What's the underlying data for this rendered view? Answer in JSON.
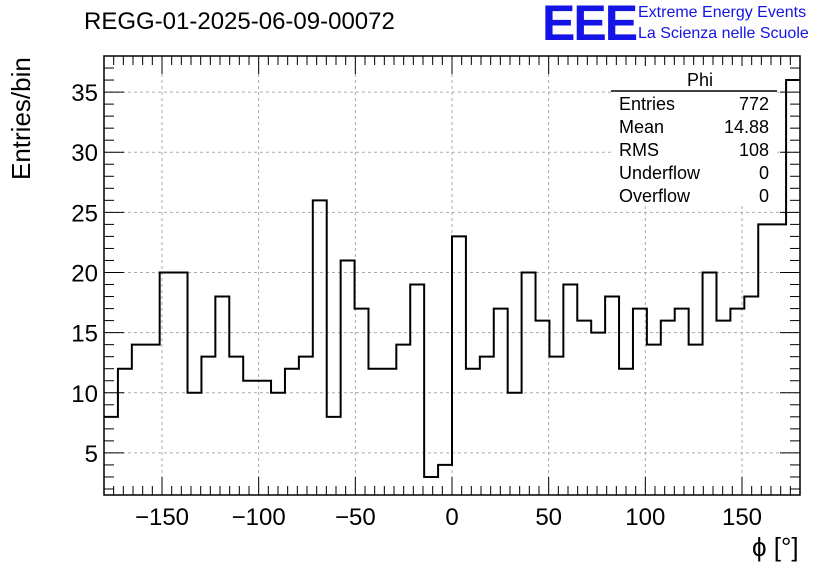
{
  "chart_data": {
    "type": "histogram",
    "title": "REGG-01-2025-06-09-00072",
    "xlabel": "ϕ [°]",
    "ylabel": "Entries/bin",
    "xlim": [
      -180,
      180
    ],
    "ylim": [
      1.5,
      38
    ],
    "grid": true,
    "bin_edges": [
      -180,
      -172.8,
      -165.6,
      -158.4,
      -151.2,
      -144,
      -136.8,
      -129.6,
      -122.4,
      -115.2,
      -108,
      -100.8,
      -93.6,
      -86.4,
      -79.2,
      -72,
      -64.8,
      -57.6,
      -50.4,
      -43.2,
      -36,
      -28.8,
      -21.6,
      -14.4,
      -7.2,
      0,
      7.2,
      14.4,
      21.6,
      28.8,
      36,
      43.2,
      50.4,
      57.6,
      64.8,
      72,
      79.2,
      86.4,
      93.6,
      100.8,
      108,
      115.2,
      122.4,
      129.6,
      136.8,
      144,
      151.2,
      158.4,
      165.6,
      172.8,
      180
    ],
    "values": [
      8,
      12,
      14,
      14,
      20,
      20,
      10,
      13,
      18,
      13,
      11,
      11,
      10,
      12,
      13,
      26,
      8,
      21,
      17,
      12,
      12,
      14,
      19,
      3,
      4,
      23,
      12,
      13,
      17,
      10,
      20,
      16,
      13,
      19,
      16,
      15,
      18,
      12,
      17,
      14,
      16,
      17,
      14,
      20,
      16,
      17,
      18,
      24,
      24,
      36
    ],
    "x_ticks": [
      -150,
      -100,
      -50,
      0,
      50,
      100,
      150
    ],
    "x_tick_labels": [
      "−150",
      "−100",
      "−50",
      "0",
      "50",
      "100",
      "150"
    ],
    "y_ticks": [
      5,
      10,
      15,
      20,
      25,
      30,
      35
    ],
    "y_tick_labels": [
      "5",
      "10",
      "15",
      "20",
      "25",
      "30",
      "35"
    ],
    "stats": {
      "name": "Phi",
      "rows": [
        {
          "label": "Entries",
          "value": "772"
        },
        {
          "label": "Mean",
          "value": "14.88"
        },
        {
          "label": "RMS",
          "value": "108"
        },
        {
          "label": "Underflow",
          "value": "0"
        },
        {
          "label": "Overflow",
          "value": "0"
        }
      ]
    }
  },
  "logo": {
    "mark": "EEE",
    "line1": "Extreme Energy Events",
    "line2": "La Scienza nelle Scuole",
    "color": "#1414e6"
  }
}
